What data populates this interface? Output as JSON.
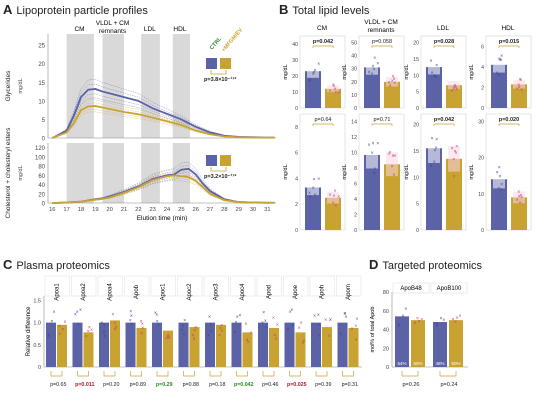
{
  "panels": {
    "a": {
      "letter": "A",
      "title": "Lipoprotein particle profiles"
    },
    "b": {
      "letter": "B",
      "title": "Total lipid levels"
    },
    "c": {
      "letter": "C",
      "title": "Plasma proteomics"
    },
    "d": {
      "letter": "D",
      "title": "Targeted proteomics"
    }
  },
  "colors": {
    "ctrl": "#5b62a6",
    "mfgm": "#c9a332",
    "ctrl_dot": "#3a4a8a",
    "mfgm_dot": "#c03a6a",
    "band": "#d9d9d9",
    "pink": "#f7d6e6",
    "green": "#2a8a2a",
    "red": "#c0102a"
  },
  "chart_data": [
    {
      "type": "line",
      "panel": "A",
      "regions": [
        "CM",
        "VLDL + CM remnants",
        "LDL",
        "HDL"
      ],
      "xlabel": "Elution time (min)",
      "xticks": [
        16,
        17,
        18,
        19,
        20,
        21,
        22,
        23,
        24,
        25,
        26,
        27,
        28,
        29,
        30,
        31
      ],
      "legend": [
        "CTRL",
        "+MFGM/EV"
      ],
      "top": {
        "ylabel": "Glycerides",
        "yunit": "mg/dL",
        "yticks": [
          0,
          5,
          10,
          15,
          20,
          25
        ],
        "ylim": [
          0,
          28
        ],
        "pvalue": "p=3.8×10⁻¹⁷²",
        "series": [
          {
            "name": "CTRL",
            "x": [
              16,
              17,
              17.5,
              18,
              18.5,
              19,
              19.5,
              20,
              21,
              22,
              23,
              24,
              25,
              26,
              27,
              28,
              29,
              30,
              31,
              31.5
            ],
            "y": [
              0,
              2,
              6,
              11,
              13,
              13.2,
              12.5,
              12,
              11,
              10,
              8,
              6.5,
              5,
              3,
              1.5,
              0.6,
              0.3,
              0.2,
              0.1,
              0.1
            ]
          },
          {
            "name": "+MFGM/EV",
            "x": [
              16,
              17,
              17.5,
              18,
              18.5,
              19,
              19.5,
              20,
              21,
              22,
              23,
              24,
              25,
              26,
              27,
              28,
              29,
              30,
              31,
              31.5
            ],
            "y": [
              0,
              1.5,
              4,
              7.5,
              8.5,
              8.6,
              8.2,
              7.8,
              7,
              6.4,
              5.5,
              4.5,
              3.5,
              2,
              1,
              0.4,
              0.2,
              0.1,
              0.1,
              0.1
            ]
          }
        ]
      },
      "bottom": {
        "ylabel": "Cholesterol + cholesteryl esters",
        "yunit": "mg/dL",
        "yticks": [
          0,
          20,
          40,
          60,
          80,
          100,
          120
        ],
        "ylim": [
          0,
          130
        ],
        "pvalue": "p=3.2×10⁻¹⁷²",
        "series": [
          {
            "name": "CTRL",
            "x": [
              16,
              17,
              18,
              19,
              19.5,
              20,
              21,
              22,
              23,
              24,
              24.5,
              25,
              25.5,
              26,
              26.5,
              27,
              28,
              29,
              30,
              31,
              31.5
            ],
            "y": [
              0,
              1,
              3,
              8,
              10,
              14,
              24,
              36,
              52,
              60,
              62,
              72,
              74,
              62,
              42,
              26,
              8,
              2,
              1,
              0.5,
              0.5
            ]
          },
          {
            "name": "+MFGM/EV",
            "x": [
              16,
              17,
              18,
              19,
              19.5,
              20,
              21,
              22,
              23,
              24,
              24.5,
              25,
              25.5,
              26,
              26.5,
              27,
              28,
              29,
              30,
              31,
              31.5
            ],
            "y": [
              0,
              1,
              3,
              7,
              9,
              12,
              22,
              34,
              50,
              58,
              60,
              58,
              56,
              48,
              34,
              20,
              6,
              2,
              1,
              0.5,
              0.5
            ]
          }
        ]
      }
    },
    {
      "type": "bar",
      "panel": "B",
      "categories": [
        "CM",
        "VLDL + CM remnants",
        "LDL",
        "HDL"
      ],
      "ylabel": "mg/dL",
      "series": [
        {
          "name": "CTRL",
          "top": [
            23,
            31,
            12.5,
            4.2
          ],
          "bottom": [
            3.3,
            9.7,
            15.5,
            14
          ]
        },
        {
          "name": "+MFGM/EV",
          "top": [
            12,
            20,
            7,
            2.3
          ],
          "bottom": [
            2.5,
            8.5,
            13.5,
            9
          ]
        }
      ],
      "top_yticks": [
        [
          "0",
          "10",
          "20",
          "30",
          "40"
        ],
        [
          "0",
          "10",
          "20",
          "30",
          "40",
          "50"
        ],
        [
          "0",
          "5",
          "10",
          "15",
          "20"
        ],
        [
          "0",
          "2",
          "4",
          "6"
        ]
      ],
      "top_ylim": [
        [
          0,
          45
        ],
        [
          0,
          55
        ],
        [
          0,
          22
        ],
        [
          0,
          7
        ]
      ],
      "top_pvalues": [
        "p=0.042",
        "p=0.058",
        "p=0.028",
        "p=0.015"
      ],
      "top_significant": [
        true,
        false,
        true,
        true
      ],
      "bottom_yticks": [
        [
          "0",
          "2",
          "4",
          "6",
          "8"
        ],
        [
          "0",
          "2",
          "4",
          "6",
          "8",
          "10",
          "12",
          "14"
        ],
        [
          "0",
          "5",
          "10",
          "15",
          "20"
        ],
        [
          "0",
          "10",
          "20",
          "30"
        ]
      ],
      "bottom_ylim": [
        [
          0,
          9
        ],
        [
          0,
          15
        ],
        [
          0,
          22
        ],
        [
          0,
          32
        ]
      ],
      "bottom_pvalues": [
        "p=0.64",
        "p=0.71",
        "p=0.042",
        "p=0.020"
      ],
      "bottom_significant": [
        false,
        false,
        true,
        true
      ]
    },
    {
      "type": "bar",
      "panel": "C",
      "categories": [
        "Apoa1",
        "Apoa2",
        "Apoa4",
        "Apob",
        "Apoc1",
        "Apoc2",
        "Apoc3",
        "Apoc4",
        "Apod",
        "Apoe",
        "Apoh",
        "Apom"
      ],
      "ylabel": "Relative difference",
      "yticks": [
        "0",
        "0.5",
        "1.0",
        "1.5"
      ],
      "ylim": [
        0,
        1.6
      ],
      "series": [
        {
          "name": "CTRL",
          "values": [
            1,
            1,
            1,
            1,
            1,
            1,
            1,
            1,
            1,
            1,
            1,
            1
          ]
        },
        {
          "name": "+MFGM/EV",
          "values": [
            0.95,
            0.78,
            1.05,
            0.88,
            0.82,
            0.9,
            0.95,
            0.78,
            0.88,
            0.78,
            0.9,
            0.88
          ]
        }
      ],
      "pvalues": [
        "p=0.65",
        "p=0.011",
        "p=0.20",
        "p=0.89",
        "p=0.29",
        "p=0.88",
        "p=0.18",
        "p=0.042",
        "p=0.46",
        "p=0.025",
        "p=0.39",
        "p=0.31"
      ],
      "pcolor": [
        "",
        "red",
        "",
        "",
        "green",
        "",
        "",
        "green",
        "",
        "red",
        "",
        ""
      ]
    },
    {
      "type": "bar",
      "panel": "D",
      "categories": [
        "ApoB48",
        "ApoB100"
      ],
      "ylabel": "mol% of total Apob",
      "yticks": [
        "0",
        "20",
        "40",
        "60",
        "80"
      ],
      "ylim": [
        0,
        80
      ],
      "series": [
        {
          "name": "CTRL",
          "values": [
            54,
            48
          ],
          "labels": [
            "54%",
            "48%"
          ]
        },
        {
          "name": "+MFGM/EV",
          "values": [
            50,
            50
          ],
          "labels": [
            "50%",
            "50%"
          ]
        }
      ],
      "pvalues": [
        "p=0.26",
        "p=0.24"
      ]
    }
  ]
}
